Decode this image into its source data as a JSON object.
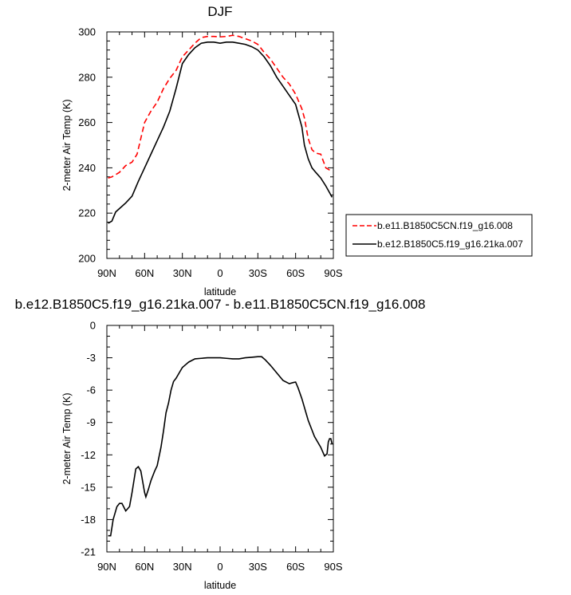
{
  "chart_data": [
    {
      "type": "line",
      "title": "DJF",
      "xlabel": "latitude",
      "ylabel": "2-meter Air Temp (K)",
      "xlim": [
        90,
        -90
      ],
      "ylim": [
        200,
        300
      ],
      "xticks": [
        90,
        60,
        30,
        0,
        -30,
        -60,
        -90
      ],
      "xtick_labels": [
        "90N",
        "60N",
        "30N",
        "0",
        "30S",
        "60S",
        "90S"
      ],
      "yticks": [
        200,
        220,
        240,
        260,
        280,
        300
      ],
      "ytick_labels": [
        "200",
        "220",
        "240",
        "260",
        "280",
        "300"
      ],
      "legend": {
        "placement": "right"
      },
      "grid": false,
      "series": [
        {
          "name": "b.e11.B1850C5CN.f19_g16.008",
          "color": "#ff0000",
          "dash": "dashed",
          "x": [
            89,
            86,
            80,
            75,
            70,
            66,
            63,
            60,
            55,
            50,
            45,
            40,
            35,
            30,
            25,
            20,
            15,
            10,
            5,
            0,
            -5,
            -10,
            -15,
            -20,
            -25,
            -30,
            -35,
            -40,
            -45,
            -50,
            -55,
            -60,
            -65,
            -67,
            -70,
            -73,
            -76,
            -80,
            -84,
            -87,
            -89
          ],
          "y": [
            235.5,
            236,
            238,
            241,
            242.5,
            246,
            253,
            260,
            265,
            269,
            275,
            279.5,
            283,
            289,
            292,
            295,
            297.5,
            298,
            298,
            297.8,
            298,
            298.5,
            298,
            297,
            296,
            294.5,
            291,
            288,
            284,
            280,
            277,
            272.5,
            266,
            262,
            253,
            248,
            246.5,
            246,
            240,
            239,
            238
          ]
        },
        {
          "name": "b.e12.B1850C5.f19_g16.21ka.007",
          "color": "#000000",
          "dash": "solid",
          "x": [
            89,
            86,
            83,
            80,
            75,
            70,
            65,
            60,
            55,
            50,
            45,
            40,
            35,
            30,
            25,
            20,
            15,
            10,
            5,
            0,
            -5,
            -10,
            -15,
            -20,
            -25,
            -30,
            -35,
            -40,
            -45,
            -50,
            -55,
            -60,
            -65,
            -67,
            -70,
            -73,
            -76,
            -80,
            -84,
            -87,
            -89
          ],
          "y": [
            215.5,
            216.5,
            220.5,
            222,
            224.5,
            227.5,
            234,
            240,
            246,
            252,
            258,
            265,
            275,
            286,
            290,
            293,
            295,
            295.5,
            295.5,
            295,
            295.5,
            295.5,
            295,
            294.5,
            293.5,
            292,
            289,
            285,
            280,
            276,
            272,
            268,
            258,
            250,
            244,
            240,
            238,
            235.5,
            232,
            229,
            227
          ]
        }
      ]
    },
    {
      "type": "line",
      "title": "b.e12.B1850C5.f19_g16.21ka.007 - b.e11.B1850C5CN.f19_g16.008",
      "xlabel": "latitude",
      "ylabel": "2-meter Air Temp (K)",
      "xlim": [
        90,
        -90
      ],
      "ylim": [
        -21,
        0
      ],
      "xticks": [
        90,
        60,
        30,
        0,
        -30,
        -60,
        -90
      ],
      "xtick_labels": [
        "90N",
        "60N",
        "30N",
        "0",
        "30S",
        "60S",
        "90S"
      ],
      "yticks": [
        0,
        -3,
        -6,
        -9,
        -12,
        -15,
        -18,
        -21
      ],
      "ytick_labels": [
        "0",
        "-3",
        "-6",
        "-9",
        "-12",
        "-15",
        "-18",
        "-21"
      ],
      "grid": false,
      "series": [
        {
          "color": "#000000",
          "dash": "solid",
          "x": [
            89,
            87,
            85,
            82,
            80,
            78,
            75,
            72,
            70,
            67,
            65,
            63,
            60,
            59,
            57,
            55,
            52,
            50,
            47,
            45,
            43,
            41,
            39,
            37,
            35,
            32,
            30,
            27,
            25,
            20,
            15,
            10,
            5,
            0,
            -5,
            -10,
            -15,
            -20,
            -25,
            -30,
            -33,
            -36,
            -40,
            -45,
            -50,
            -55,
            -58,
            -60,
            -62,
            -65,
            -70,
            -75,
            -80,
            -83,
            -85,
            -86,
            -87,
            -88,
            -89
          ],
          "y": [
            -19.5,
            -19.5,
            -18,
            -16.8,
            -16.5,
            -16.5,
            -17.2,
            -16.8,
            -15.5,
            -13.3,
            -13.1,
            -13.5,
            -15.5,
            -15.9,
            -15.2,
            -14.4,
            -13.5,
            -13,
            -11.3,
            -9.8,
            -8.1,
            -7.2,
            -6,
            -5.2,
            -4.9,
            -4.3,
            -3.9,
            -3.6,
            -3.4,
            -3.1,
            -3.05,
            -3.0,
            -3.0,
            -3.0,
            -3.05,
            -3.1,
            -3.1,
            -3.0,
            -2.95,
            -2.9,
            -2.9,
            -3.2,
            -3.7,
            -4.4,
            -5.1,
            -5.4,
            -5.3,
            -5.25,
            -5.8,
            -6.8,
            -8.8,
            -10.3,
            -11.3,
            -12.1,
            -11.9,
            -10.8,
            -10.5,
            -10.5,
            -11.0
          ]
        }
      ]
    }
  ]
}
